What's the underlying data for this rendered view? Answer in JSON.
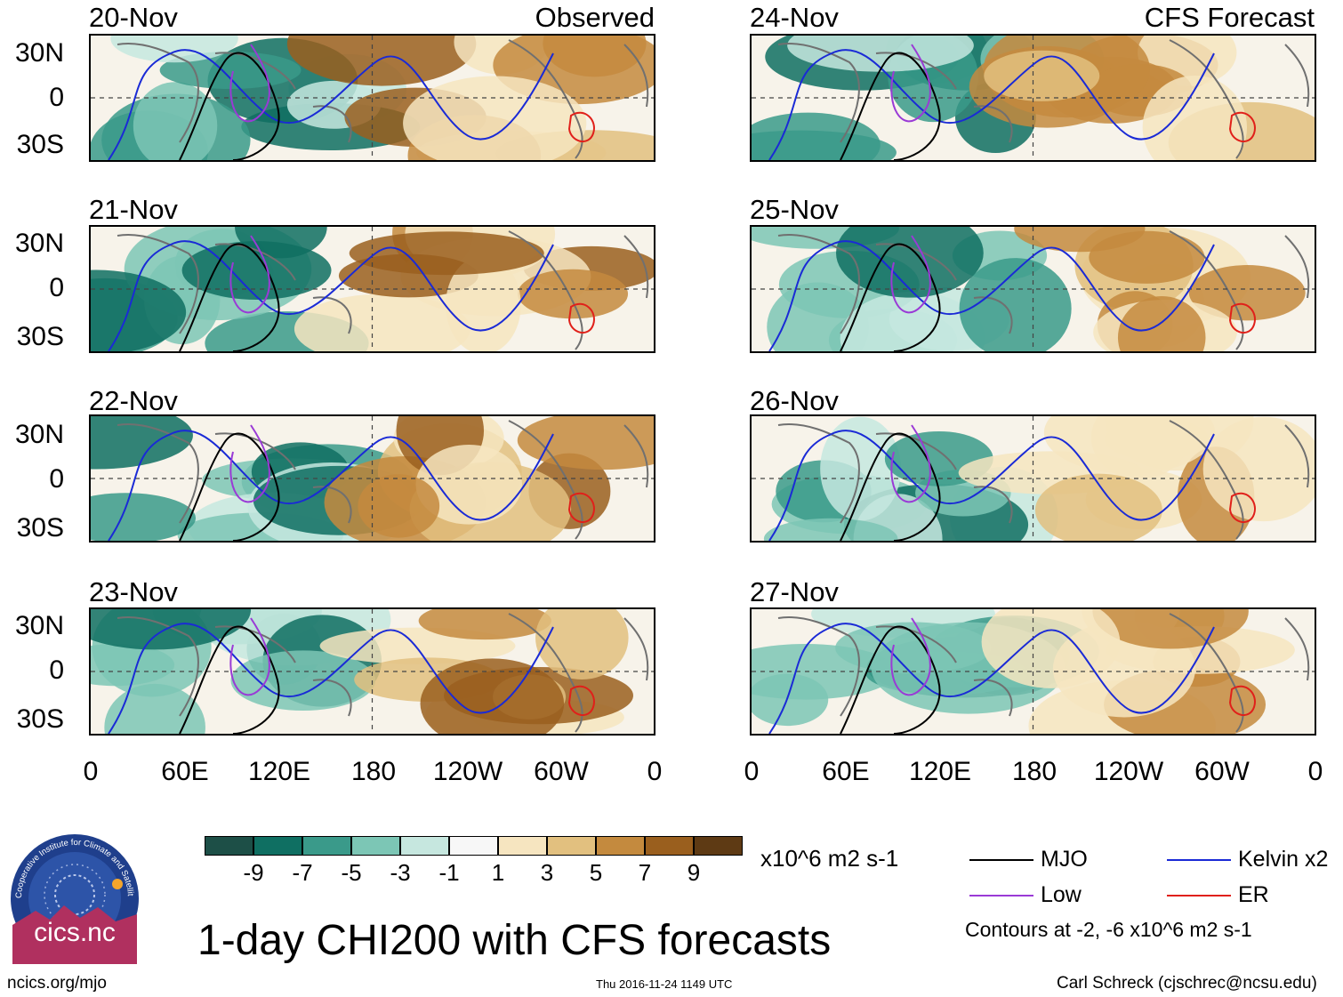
{
  "observed_title": "Observed",
  "forecast_title": "CFS Forecast",
  "panels": [
    {
      "date": "20-Nov"
    },
    {
      "date": "21-Nov"
    },
    {
      "date": "22-Nov"
    },
    {
      "date": "23-Nov"
    },
    {
      "date": "24-Nov"
    },
    {
      "date": "25-Nov"
    },
    {
      "date": "26-Nov"
    },
    {
      "date": "27-Nov"
    }
  ],
  "lat_labels": [
    "30N",
    "0",
    "30S"
  ],
  "lon_labels": [
    "0",
    "60E",
    "120E",
    "180",
    "120W",
    "60W",
    "0"
  ],
  "colorbar": {
    "unit": "x10^6 m2 s-1",
    "ticks": [
      "-9",
      "-7",
      "-5",
      "-3",
      "-1",
      "1",
      "3",
      "5",
      "7",
      "9"
    ],
    "colors": [
      "#1d4f47",
      "#0f6f62",
      "#3a9a8a",
      "#7cc6b5",
      "#c6e7df",
      "#f7f7f7",
      "#f6e5c0",
      "#e2c07f",
      "#c48a3e",
      "#9a5f1e",
      "#5e3a14"
    ]
  },
  "legend": {
    "mjo": "MJO",
    "kelvin": "Kelvin x2",
    "low": "Low",
    "er": "ER",
    "contour_note": "Contours at -2, -6 x10^6 m2 s-1",
    "colors": {
      "mjo": "#000000",
      "kelvin": "#1a2ad6",
      "low": "#9a3ad6",
      "er": "#e0201a"
    }
  },
  "main_title": "1-day CHI200 with CFS forecasts",
  "logo_text": "cics.nc",
  "logo_ring_text": "Cooperative Institute for Climate and Satellites",
  "footer": {
    "url": "ncics.org/mjo",
    "timestamp": "Thu 2016-11-24 1149 UTC",
    "author": "Carl Schreck (cjschrec@ncsu.edu)"
  }
}
